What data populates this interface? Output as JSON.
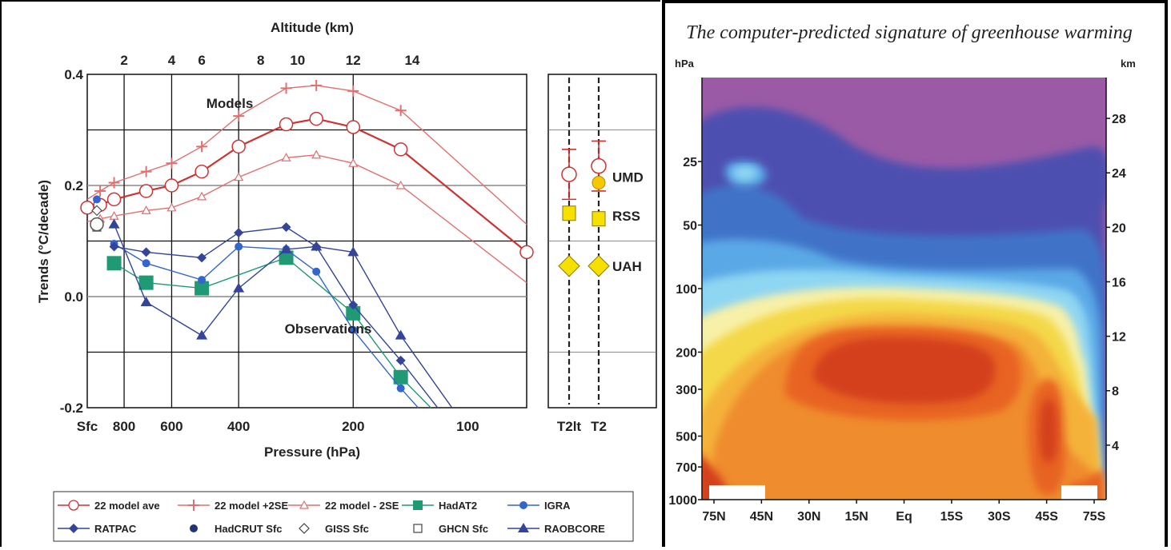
{
  "chart_data": [
    {
      "type": "line",
      "title": "Altitude (km)",
      "xlabel": "Pressure (hPa)",
      "ylabel": "Trends (°C/decade)",
      "ylim": [
        -0.2,
        0.4
      ],
      "yticks": [
        "0.4",
        "0.2",
        "0.0",
        "-0.2"
      ],
      "yticks_values": [
        0.4,
        0.2,
        0.0,
        -0.2
      ],
      "x_ticks": [
        {
          "label": "Sfc",
          "p": 1000
        },
        {
          "label": "800",
          "p": 800
        },
        {
          "label": "600",
          "p": 600
        },
        {
          "label": "400",
          "p": 400
        },
        {
          "label": "200",
          "p": 200
        },
        {
          "label": "100",
          "p": 100
        }
      ],
      "altitude_ticks": [
        {
          "label": "2",
          "p": 800
        },
        {
          "label": "4",
          "p": 600
        },
        {
          "label": "6",
          "p": 500
        },
        {
          "label": "8",
          "p": 350
        },
        {
          "label": "10",
          "p": 280
        },
        {
          "label": "12",
          "p": 200
        },
        {
          "label": "14",
          "p": 140
        }
      ],
      "annotations": [
        "Models",
        "Observations"
      ],
      "series": [
        {
          "name": "22 model ave",
          "color": "#cc3333",
          "marker": "open-circle",
          "points": [
            [
              1000,
              0.16
            ],
            [
              925,
              0.165
            ],
            [
              850,
              0.175
            ],
            [
              700,
              0.19
            ],
            [
              600,
              0.2
            ],
            [
              500,
              0.225
            ],
            [
              400,
              0.27
            ],
            [
              300,
              0.31
            ],
            [
              250,
              0.32
            ],
            [
              200,
              0.305
            ],
            [
              150,
              0.265
            ],
            [
              70,
              0.08
            ]
          ]
        },
        {
          "name": "22 model +2SE",
          "color": "#e07070",
          "marker": "plus",
          "points": [
            [
              1000,
              0.175
            ],
            [
              925,
              0.19
            ],
            [
              850,
              0.205
            ],
            [
              700,
              0.225
            ],
            [
              600,
              0.24
            ],
            [
              500,
              0.27
            ],
            [
              400,
              0.325
            ],
            [
              300,
              0.375
            ],
            [
              250,
              0.38
            ],
            [
              200,
              0.37
            ],
            [
              150,
              0.335
            ],
            [
              70,
              0.13
            ]
          ]
        },
        {
          "name": "22 model - 2SE",
          "color": "#e07070",
          "marker": "open-triangle",
          "points": [
            [
              1000,
              0.135
            ],
            [
              925,
              0.14
            ],
            [
              850,
              0.145
            ],
            [
              700,
              0.155
            ],
            [
              600,
              0.16
            ],
            [
              500,
              0.18
            ],
            [
              400,
              0.215
            ],
            [
              300,
              0.25
            ],
            [
              250,
              0.255
            ],
            [
              200,
              0.24
            ],
            [
              150,
              0.2
            ],
            [
              70,
              0.025
            ]
          ]
        },
        {
          "name": "HadAT2",
          "color": "#1f9a74",
          "marker": "square",
          "points": [
            [
              850,
              0.06
            ],
            [
              700,
              0.025
            ],
            [
              500,
              0.015
            ],
            [
              300,
              0.07
            ],
            [
              200,
              -0.03
            ],
            [
              150,
              -0.145
            ],
            [
              125,
              -0.2
            ]
          ]
        },
        {
          "name": "IGRA",
          "color": "#3366cc",
          "marker": "circle",
          "points": [
            [
              850,
              0.095
            ],
            [
              700,
              0.06
            ],
            [
              500,
              0.03
            ],
            [
              400,
              0.09
            ],
            [
              300,
              0.085
            ],
            [
              250,
              0.045
            ],
            [
              200,
              -0.06
            ],
            [
              150,
              -0.165
            ],
            [
              135,
              -0.2
            ]
          ]
        },
        {
          "name": "RATPAC",
          "color": "#334499",
          "marker": "diamond",
          "points": [
            [
              850,
              0.09
            ],
            [
              700,
              0.08
            ],
            [
              500,
              0.07
            ],
            [
              400,
              0.115
            ],
            [
              300,
              0.125
            ],
            [
              250,
              0.09
            ],
            [
              200,
              -0.015
            ],
            [
              150,
              -0.115
            ],
            [
              120,
              -0.2
            ]
          ]
        },
        {
          "name": "RAOBCORE",
          "color": "#334499",
          "marker": "triangle",
          "points": [
            [
              850,
              0.13
            ],
            [
              700,
              -0.01
            ],
            [
              500,
              -0.07
            ],
            [
              400,
              0.015
            ],
            [
              300,
              0.085
            ],
            [
              250,
              0.09
            ],
            [
              200,
              0.08
            ],
            [
              150,
              -0.07
            ],
            [
              110,
              -0.2
            ]
          ]
        }
      ],
      "surface_points": [
        {
          "name": "HadCRUT Sfc",
          "marker": "dot",
          "value": 0.175
        },
        {
          "name": "GISS Sfc",
          "marker": "open-diamond",
          "value": 0.155
        },
        {
          "name": "GHCN Sfc",
          "marker": "open-square",
          "value": 0.125
        },
        {
          "name": "22 model ave",
          "marker": "open-circle",
          "value": 0.13
        }
      ],
      "satellite": {
        "columns": [
          "T2lt",
          "T2"
        ],
        "labels": [
          "UMD",
          "RSS",
          "UAH"
        ],
        "points": [
          {
            "column": "T2lt",
            "name": "22 model ave",
            "value": 0.22,
            "range": [
              0.175,
              0.265
            ]
          },
          {
            "column": "T2",
            "name": "22 model ave",
            "value": 0.235,
            "range": [
              0.19,
              0.28
            ]
          },
          {
            "column": "T2",
            "name": "UMD",
            "value": 0.205
          },
          {
            "column": "T2lt",
            "name": "RSS",
            "value": 0.15
          },
          {
            "column": "T2",
            "name": "RSS",
            "value": 0.14
          },
          {
            "column": "T2lt",
            "name": "UAH",
            "value": 0.055
          },
          {
            "column": "T2",
            "name": "UAH",
            "value": 0.055
          }
        ]
      },
      "legend": {
        "placement": "bottom",
        "entries": [
          {
            "label": "22 model ave",
            "marker": "open-circle",
            "color": "#cc3333"
          },
          {
            "label": "22 model +2SE",
            "marker": "plus",
            "color": "#e07070"
          },
          {
            "label": "22 model - 2SE",
            "marker": "open-triangle",
            "color": "#e07070"
          },
          {
            "label": "HadAT2",
            "marker": "square",
            "color": "#1f9a74"
          },
          {
            "label": "IGRA",
            "marker": "circle",
            "color": "#3366cc"
          },
          {
            "label": "RATPAC",
            "marker": "diamond",
            "color": "#334499"
          },
          {
            "label": "HadCRUT Sfc",
            "marker": "dot",
            "color": "#223377"
          },
          {
            "label": "GISS Sfc",
            "marker": "open-diamond",
            "color": "#444444"
          },
          {
            "label": "GHCN Sfc",
            "marker": "open-square",
            "color": "#444444"
          },
          {
            "label": "RAOBCORE",
            "marker": "triangle",
            "color": "#334499"
          }
        ]
      }
    },
    {
      "type": "heatmap",
      "title": "The computer-predicted signature of greenhouse warming",
      "y_left_unit": "hPa",
      "y_right_unit": "km",
      "x_ticks": [
        "75N",
        "45N",
        "30N",
        "15N",
        "Eq",
        "15S",
        "30S",
        "45S",
        "75S"
      ],
      "y_left_ticks": [
        "25",
        "50",
        "100",
        "200",
        "300",
        "500",
        "700",
        "1000"
      ],
      "y_right_ticks": [
        "28",
        "24",
        "20",
        "16",
        "12",
        "8",
        "4"
      ],
      "colors": {
        "background": "#9a5aa6",
        "deep_blue": "#4d4fb0",
        "blue": "#3f73c8",
        "light_blue": "#5aa8e6",
        "cyan": "#8fd6f2",
        "pale_yellow": "#f7f0a8",
        "yellow": "#f4d84a",
        "orange_yellow": "#f4b23a",
        "orange": "#ef8c2e",
        "red_orange": "#e86424",
        "red": "#d4401c"
      }
    }
  ]
}
